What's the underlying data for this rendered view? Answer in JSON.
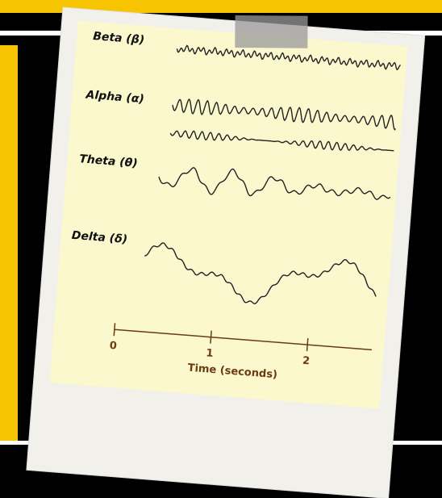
{
  "labels": {
    "beta": "Beta (β)",
    "alpha": "Alpha (α)",
    "theta": "Theta (θ)",
    "delta": "Delta (δ)"
  },
  "time_axis": {
    "ticks": [
      0,
      1,
      2
    ],
    "title": "Time (seconds)"
  }
}
